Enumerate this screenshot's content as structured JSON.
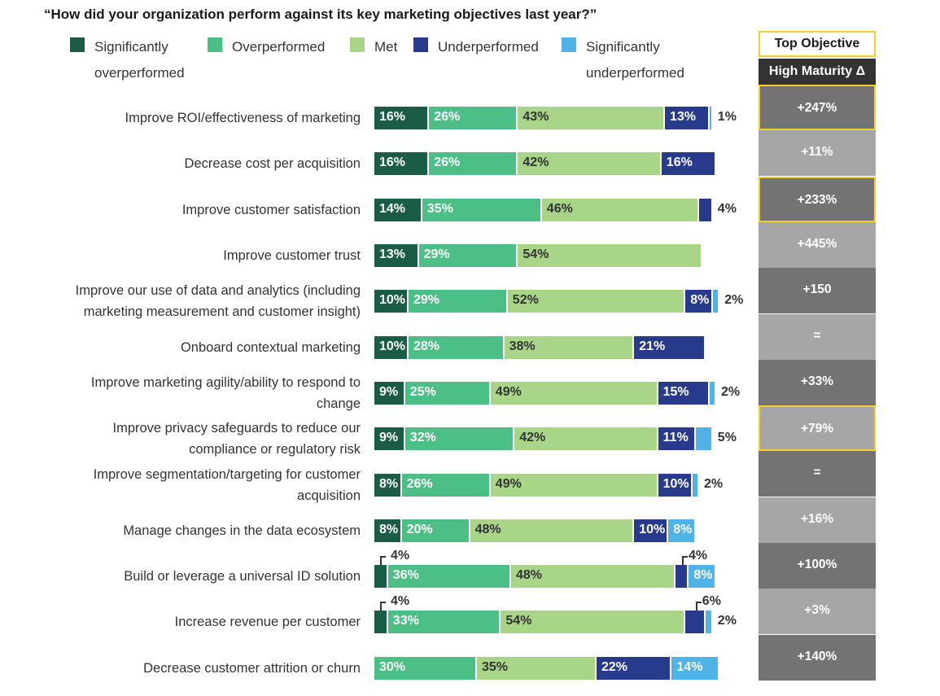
{
  "title": "“How did your organization perform against its key marketing objectives last year?”",
  "legend": [
    {
      "line1": "Significantly",
      "line2": "overperformed",
      "color": "#1a5c45"
    },
    {
      "line1": "Overperformed",
      "line2": "",
      "color": "#4bbf86"
    },
    {
      "line1": "Met",
      "line2": "",
      "color": "#a8d587"
    },
    {
      "line1": "Underperformed",
      "line2": "",
      "color": "#283a8c"
    },
    {
      "line1": "Significantly",
      "line2": "underperformed",
      "color": "#4fb3e8"
    }
  ],
  "side_table": {
    "header_top": "Top Objective",
    "header_bottom": "High Maturity Δ",
    "dark_color": "#737373",
    "light_color": "#a6a6a6",
    "highlight_color": "#f2d027"
  },
  "chart_data": {
    "type": "bar",
    "orientation": "horizontal",
    "stacked": true,
    "series": [
      {
        "name": "Significantly overperformed",
        "values": [
          16,
          16,
          14,
          13,
          10,
          10,
          9,
          9,
          8,
          8,
          4,
          4,
          0
        ]
      },
      {
        "name": "Overperformed",
        "values": [
          26,
          26,
          35,
          29,
          29,
          28,
          25,
          32,
          26,
          20,
          36,
          33,
          30
        ]
      },
      {
        "name": "Met",
        "values": [
          43,
          42,
          46,
          54,
          52,
          38,
          49,
          42,
          49,
          48,
          48,
          54,
          35
        ]
      },
      {
        "name": "Underperformed",
        "values": [
          13,
          16,
          4,
          0,
          8,
          21,
          15,
          11,
          10,
          10,
          4,
          6,
          22
        ]
      },
      {
        "name": "Significantly underperformed",
        "values": [
          1,
          0,
          0,
          0,
          2,
          0,
          2,
          5,
          2,
          8,
          8,
          2,
          14
        ]
      }
    ],
    "categories": [
      "Improve ROI/effectiveness of marketing",
      "Decrease cost per acquisition",
      "Improve customer satisfaction",
      "Improve customer trust",
      "Improve our use of data and analytics (including marketing measurement and customer insight)",
      "Onboard contextual marketing",
      "Improve marketing agility/ability to respond to change",
      "Improve privacy safeguards to reduce our compliance or regulatory risk",
      "Improve segmentation/targeting for customer acquisition",
      "Manage changes in the data ecosystem",
      "Build or leverage a universal ID solution",
      "Increase revenue per customer",
      "Decrease customer attrition or churn"
    ],
    "rows": [
      {
        "label_lines": [
          "Improve ROI/effectiveness of marketing"
        ],
        "values": [
          16,
          26,
          43,
          13,
          1
        ],
        "labels": [
          "16%",
          "26%",
          "43%",
          "13%",
          "1%"
        ],
        "delta": "+247%",
        "top_objective": true
      },
      {
        "label_lines": [
          "Decrease cost per acquisition"
        ],
        "values": [
          16,
          26,
          42,
          16,
          0
        ],
        "labels": [
          "16%",
          "26%",
          "42%",
          "16%",
          ""
        ],
        "delta": "+11%",
        "top_objective": false
      },
      {
        "label_lines": [
          "Improve customer satisfaction"
        ],
        "values": [
          14,
          35,
          46,
          4,
          0
        ],
        "labels": [
          "14%",
          "35%",
          "46%",
          "4%",
          ""
        ],
        "delta": "+233%",
        "top_objective": true
      },
      {
        "label_lines": [
          "Improve customer trust"
        ],
        "values": [
          13,
          29,
          54,
          0,
          0
        ],
        "labels": [
          "13%",
          "29%",
          "54%",
          "",
          ""
        ],
        "delta": "+445%",
        "top_objective": false
      },
      {
        "label_lines": [
          "Improve our use of data and analytics (including",
          "marketing measurement and customer insight)"
        ],
        "values": [
          10,
          29,
          52,
          8,
          2
        ],
        "labels": [
          "10%",
          "29%",
          "52%",
          "8%",
          "2%"
        ],
        "delta": "+150",
        "top_objective": false
      },
      {
        "label_lines": [
          "Onboard contextual marketing"
        ],
        "values": [
          10,
          28,
          38,
          21,
          0
        ],
        "labels": [
          "10%",
          "28%",
          "38%",
          "21%",
          ""
        ],
        "delta": "=",
        "top_objective": false
      },
      {
        "label_lines": [
          "Improve marketing agility/ability to respond to",
          "change"
        ],
        "values": [
          9,
          25,
          49,
          15,
          2
        ],
        "labels": [
          "9%",
          "25%",
          "49%",
          "15%",
          "2%"
        ],
        "delta": "+33%",
        "top_objective": false
      },
      {
        "label_lines": [
          "Improve privacy safeguards to reduce our",
          "compliance or regulatory risk"
        ],
        "values": [
          9,
          32,
          42,
          11,
          5
        ],
        "labels": [
          "9%",
          "32%",
          "42%",
          "11%",
          "5%"
        ],
        "delta": "+79%",
        "top_objective": true
      },
      {
        "label_lines": [
          "Improve segmentation/targeting for customer",
          "acquisition"
        ],
        "values": [
          8,
          26,
          49,
          10,
          2
        ],
        "labels": [
          "8%",
          "26%",
          "49%",
          "10%",
          "2%"
        ],
        "delta": "=",
        "top_objective": false
      },
      {
        "label_lines": [
          "Manage changes in the data ecosystem"
        ],
        "values": [
          8,
          20,
          48,
          10,
          8
        ],
        "labels": [
          "8%",
          "20%",
          "48%",
          "10%",
          "8%"
        ],
        "delta": "+16%",
        "top_objective": false
      },
      {
        "label_lines": [
          "Build or leverage a universal ID solution"
        ],
        "values": [
          4,
          36,
          48,
          4,
          8
        ],
        "labels": [
          "4%",
          "36%",
          "48%",
          "4%",
          "8%"
        ],
        "delta": "+100%",
        "top_objective": false
      },
      {
        "label_lines": [
          "Increase revenue per customer"
        ],
        "values": [
          4,
          33,
          54,
          6,
          2
        ],
        "labels": [
          "4%",
          "33%",
          "54%",
          "6%",
          "2%"
        ],
        "delta": "+3%",
        "top_objective": false
      },
      {
        "label_lines": [
          "Decrease customer attrition or churn"
        ],
        "values": [
          0,
          30,
          35,
          22,
          14
        ],
        "labels": [
          "",
          "30%",
          "35%",
          "22%",
          "14%"
        ],
        "delta": "+140%",
        "top_objective": false
      }
    ]
  }
}
